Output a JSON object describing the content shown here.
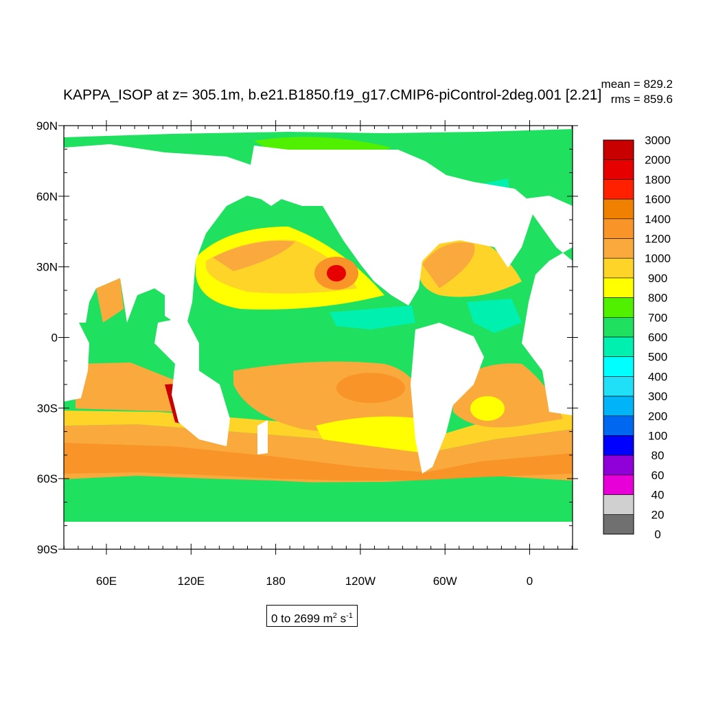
{
  "title": "KAPPA_ISOP at z= 305.1m, b.e21.B1850.f19_g17.CMIP6-piControl-2deg.001 [2.21]",
  "stats": {
    "mean": "mean = 829.2",
    "rms": "rms = 859.6"
  },
  "range": {
    "text": "0 to 2699 m",
    "unit_sup1": "2",
    "unit_mid": " s",
    "unit_sup2": "-1"
  },
  "lat_labels": [
    "90N",
    "60N",
    "30N",
    "0",
    "30S",
    "60S",
    "90S"
  ],
  "lon_labels": [
    "60E",
    "120E",
    "180",
    "120W",
    "60W",
    "0"
  ],
  "colorbar": {
    "levels": [
      "3000",
      "2000",
      "1800",
      "1600",
      "1400",
      "1200",
      "1000",
      "900",
      "800",
      "700",
      "600",
      "500",
      "400",
      "300",
      "200",
      "100",
      "80",
      "60",
      "40",
      "20",
      "0"
    ],
    "colors": [
      "#c80000",
      "#e60000",
      "#ff2000",
      "#f08000",
      "#f89428",
      "#faaa3c",
      "#ffd428",
      "#ffff00",
      "#50f000",
      "#20e060",
      "#00f0b0",
      "#00ffff",
      "#20e0f8",
      "#00b4f8",
      "#0068f0",
      "#0000ff",
      "#9000d8",
      "#e800d8",
      "#d0d0d0",
      "#707070"
    ]
  },
  "colors": {
    "land": "#ffffff",
    "ocean_base": "#20e060",
    "frame": "#000000"
  }
}
